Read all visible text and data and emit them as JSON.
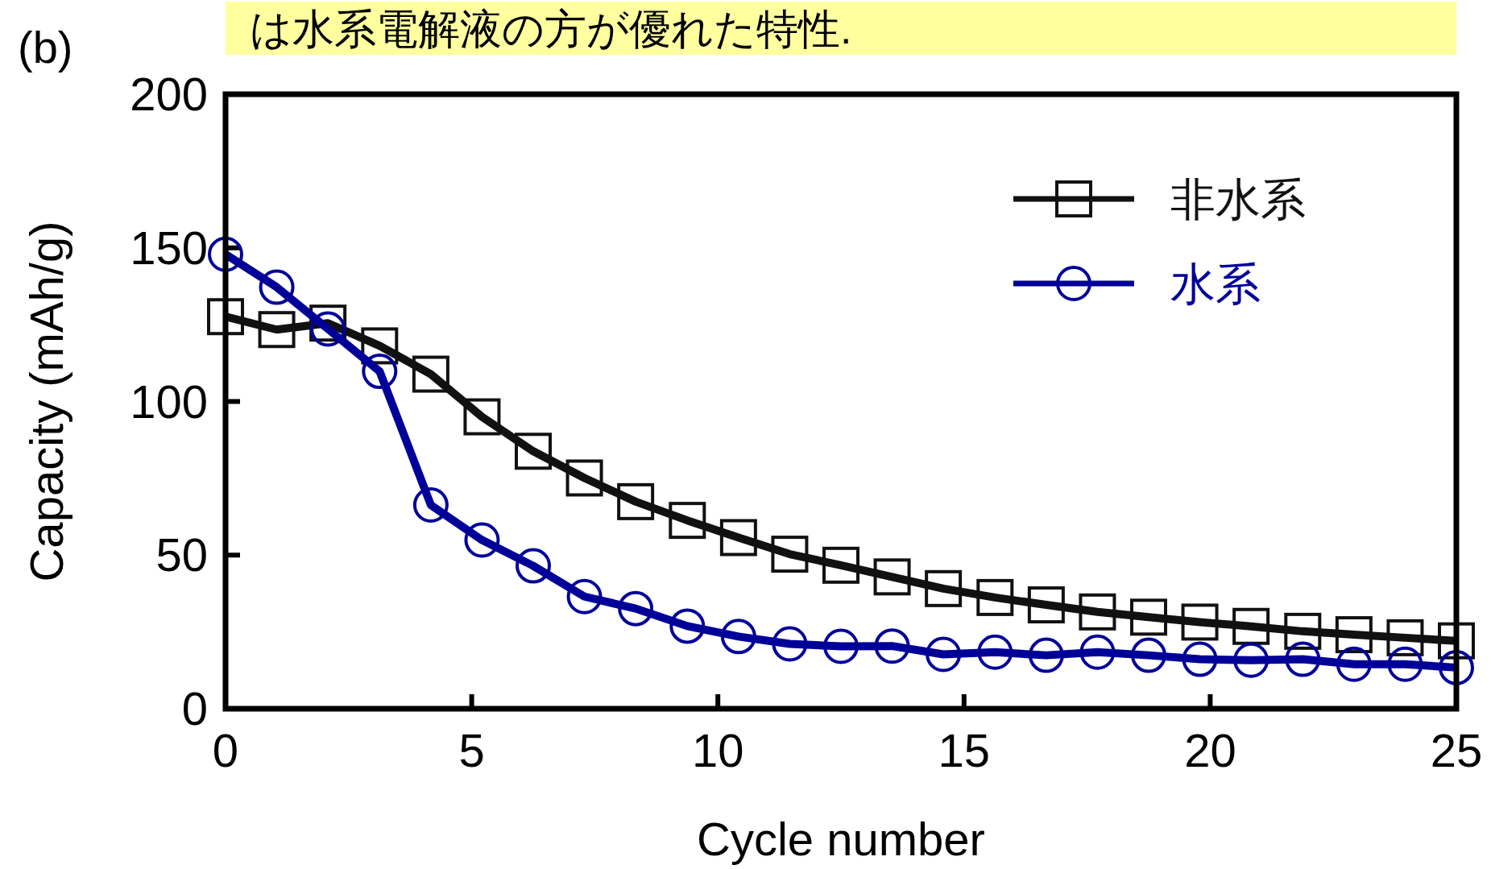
{
  "chart_data": {
    "type": "line",
    "title": "は水系電解液の方が優れた特性.",
    "annotations": [
      "(b)"
    ],
    "xlabel": "Cycle number",
    "ylabel": "Capacity (mAh/g)",
    "x": [
      0,
      1.04,
      2.08,
      3.13,
      4.17,
      5.21,
      6.25,
      7.29,
      8.33,
      9.38,
      10.42,
      11.46,
      12.5,
      13.54,
      14.58,
      15.63,
      16.67,
      17.71,
      18.75,
      19.79,
      20.83,
      21.88,
      22.92,
      23.96,
      25
    ],
    "xlim": [
      0,
      25
    ],
    "ylim": [
      0,
      200
    ],
    "xticks": [
      0,
      5,
      10,
      15,
      20,
      25
    ],
    "yticks": [
      0,
      50,
      100,
      150,
      200
    ],
    "legend": "top right",
    "line_style": "solid",
    "series": [
      {
        "name": "非水系",
        "color": "#111111",
        "marker": "square",
        "values": [
          127.6,
          123.4,
          125.5,
          118.1,
          108.9,
          95,
          83.8,
          75.1,
          67.4,
          61.3,
          55.7,
          50.3,
          46.7,
          42.9,
          39.1,
          36.2,
          33.8,
          31.5,
          29.8,
          28.2,
          26.8,
          25.2,
          24.1,
          23.1,
          22.1
        ]
      },
      {
        "name": "水系",
        "color": "#000099",
        "marker": "circle",
        "values": [
          147.9,
          137.2,
          123.6,
          109.8,
          66.3,
          54.9,
          46.5,
          36.5,
          32.6,
          26.9,
          23.5,
          21.1,
          20.3,
          20.4,
          17.7,
          18.4,
          17.4,
          18.4,
          17.4,
          16.1,
          15.8,
          16.1,
          14.5,
          14.5,
          13.4
        ]
      }
    ]
  }
}
